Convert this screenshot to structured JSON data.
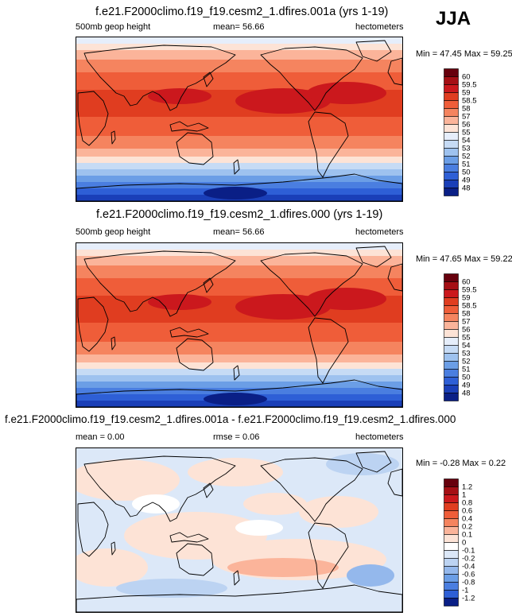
{
  "season": "JJA",
  "panels": [
    {
      "title": "f.e21.F2000climo.f19_f19.cesm2_1.dfires.001a (yrs 1-19)",
      "left_label": "500mb geop height",
      "center_label": "mean=  56.66",
      "right_label": "hectometers",
      "minmax": "Min = 47.45 Max = 59.25",
      "colorbar": {
        "labels": [
          "60",
          "59.5",
          "59",
          "58.5",
          "58",
          "57",
          "56",
          "55",
          "54",
          "53",
          "52",
          "51",
          "50",
          "49",
          "48"
        ],
        "colors": [
          "#67000d",
          "#a50f15",
          "#cb181d",
          "#e03d20",
          "#ef5d39",
          "#f5845f",
          "#fbb49a",
          "#fde3d6",
          "#e6eefb",
          "#c6dbf5",
          "#9ec2ef",
          "#6b9ee6",
          "#4a7ee0",
          "#2e5fd6",
          "#1a3fb8",
          "#0a1f86"
        ]
      },
      "variant": "abs"
    },
    {
      "title": "f.e21.F2000climo.f19_f19.cesm2_1.dfires.000 (yrs 1-19)",
      "left_label": "500mb geop height",
      "center_label": "mean=  56.66",
      "right_label": "hectometers",
      "minmax": "Min = 47.65 Max = 59.22",
      "colorbar": {
        "labels": [
          "60",
          "59.5",
          "59",
          "58.5",
          "58",
          "57",
          "56",
          "55",
          "54",
          "53",
          "52",
          "51",
          "50",
          "49",
          "48"
        ],
        "colors": [
          "#67000d",
          "#a50f15",
          "#cb181d",
          "#e03d20",
          "#ef5d39",
          "#f5845f",
          "#fbb49a",
          "#fde3d6",
          "#e6eefb",
          "#c6dbf5",
          "#9ec2ef",
          "#6b9ee6",
          "#4a7ee0",
          "#2e5fd6",
          "#1a3fb8",
          "#0a1f86"
        ]
      },
      "variant": "abs"
    },
    {
      "title": "f.e21.F2000climo.f19_f19.cesm2_1.dfires.001a - f.e21.F2000climo.f19_f19.cesm2_1.dfires.000",
      "left_label": "mean =  0.00",
      "center_label": "rmse =  0.06",
      "right_label": "hectometers",
      "minmax": "Min = -0.28 Max =  0.22",
      "colorbar": {
        "labels": [
          "1.2",
          "1",
          "0.8",
          "0.6",
          "0.4",
          "0.2",
          "0.1",
          "0",
          "-0.1",
          "-0.2",
          "-0.4",
          "-0.6",
          "-0.8",
          "-1",
          "-1.2"
        ],
        "colors": [
          "#67000d",
          "#a50f15",
          "#cb181d",
          "#e03d20",
          "#ef5d39",
          "#f5845f",
          "#fbb49a",
          "#fde3d6",
          "#ffffff",
          "#dce8f8",
          "#bcd3f2",
          "#94b8ec",
          "#6b9ee6",
          "#4a7ee0",
          "#2e5fd6",
          "#0a1f86"
        ]
      },
      "variant": "diff"
    }
  ]
}
